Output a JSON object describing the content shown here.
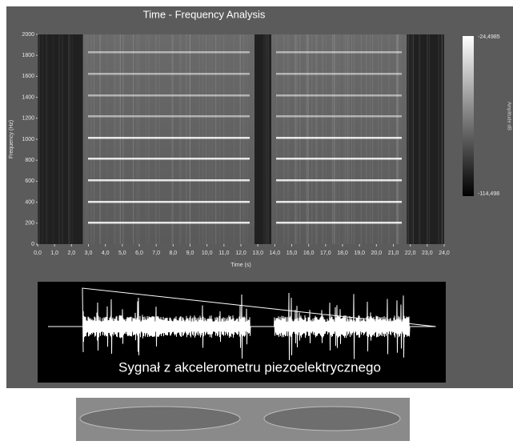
{
  "chart_data": {
    "type": "spectrogram",
    "title": "Time - Frequency Analysis",
    "x_label": "Time (s)",
    "y_label": "Frequency (Hz)",
    "xlim": [
      0,
      24
    ],
    "ylim": [
      0,
      2000
    ],
    "xticks": [
      {
        "value": 0,
        "label": "0,0"
      },
      {
        "value": 1,
        "label": "1,0"
      },
      {
        "value": 2,
        "label": "2,0"
      },
      {
        "value": 3,
        "label": "3,0"
      },
      {
        "value": 4,
        "label": "4,0"
      },
      {
        "value": 5,
        "label": "5,0"
      },
      {
        "value": 6,
        "label": "6,0"
      },
      {
        "value": 7,
        "label": "7,0"
      },
      {
        "value": 8,
        "label": "8,0"
      },
      {
        "value": 9,
        "label": "9,0"
      },
      {
        "value": 10,
        "label": "10,0"
      },
      {
        "value": 11,
        "label": "11,0"
      },
      {
        "value": 12,
        "label": "12,0"
      },
      {
        "value": 13,
        "label": "13,0"
      },
      {
        "value": 14,
        "label": "14,0"
      },
      {
        "value": 15,
        "label": "15,0"
      },
      {
        "value": 16,
        "label": "16,0"
      },
      {
        "value": 17,
        "label": "17,0"
      },
      {
        "value": 18,
        "label": "18,0"
      },
      {
        "value": 19,
        "label": "19,0"
      },
      {
        "value": 20,
        "label": "20,0"
      },
      {
        "value": 21,
        "label": "21,0"
      },
      {
        "value": 22,
        "label": "22,0"
      },
      {
        "value": 23,
        "label": "23,0"
      },
      {
        "value": 24,
        "label": "24,0"
      }
    ],
    "yticks": [
      0,
      200,
      400,
      600,
      800,
      1000,
      1200,
      1400,
      1600,
      1800,
      2000
    ],
    "colorbar": {
      "label": "Amplitude dB",
      "max_label": "-24,4985",
      "min_label": "-114,498"
    },
    "signal_caption": "Sygnał z akcelerometru piezoelektrycznego"
  }
}
